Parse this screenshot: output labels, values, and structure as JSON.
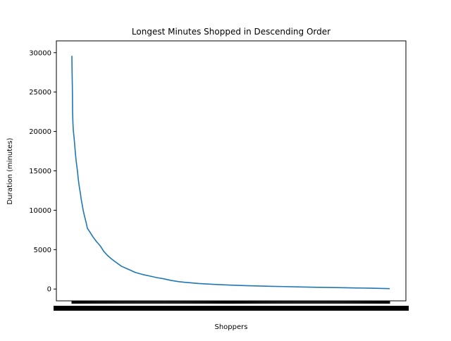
{
  "chart_data": {
    "type": "line",
    "title": "Longest Minutes Shopped in Descending Order",
    "xlabel": "Shoppers",
    "ylabel": "Duration (minutes)",
    "ylim": [
      -1500,
      31500
    ],
    "y_ticks": [
      0,
      5000,
      10000,
      15000,
      20000,
      25000,
      30000
    ],
    "y_tick_labels": [
      "0",
      "5000",
      "10000",
      "15000",
      "20000",
      "25000",
      "30000"
    ],
    "x_ticks_note": "dense overlapping shopper tick labels (illegible)",
    "grid": false,
    "legend": "none",
    "series_color": "#1f77b4",
    "series": [
      {
        "x": [
          0,
          0.3,
          0.7,
          1,
          1.5,
          2,
          3,
          4,
          5,
          6,
          7,
          8,
          9,
          10,
          11,
          12,
          13,
          14,
          15,
          16,
          18,
          20,
          22,
          25,
          30,
          35,
          40,
          45,
          50,
          55,
          60,
          70,
          80,
          90,
          100,
          110,
          120,
          130,
          140,
          150,
          160,
          180,
          200,
          225,
          250,
          275,
          300,
          325,
          350,
          375,
          400,
          425,
          450
        ],
        "y": [
          29600,
          27500,
          25600,
          22500,
          21000,
          20200,
          19300,
          18300,
          17200,
          16300,
          15600,
          14900,
          14000,
          13300,
          12700,
          12200,
          11500,
          11000,
          10500,
          10000,
          9200,
          8500,
          7700,
          7300,
          6600,
          6000,
          5500,
          4800,
          4300,
          3900,
          3550,
          2900,
          2500,
          2100,
          1850,
          1650,
          1450,
          1300,
          1100,
          950,
          850,
          700,
          600,
          500,
          420,
          360,
          310,
          260,
          220,
          180,
          140,
          100,
          50
        ]
      }
    ]
  }
}
